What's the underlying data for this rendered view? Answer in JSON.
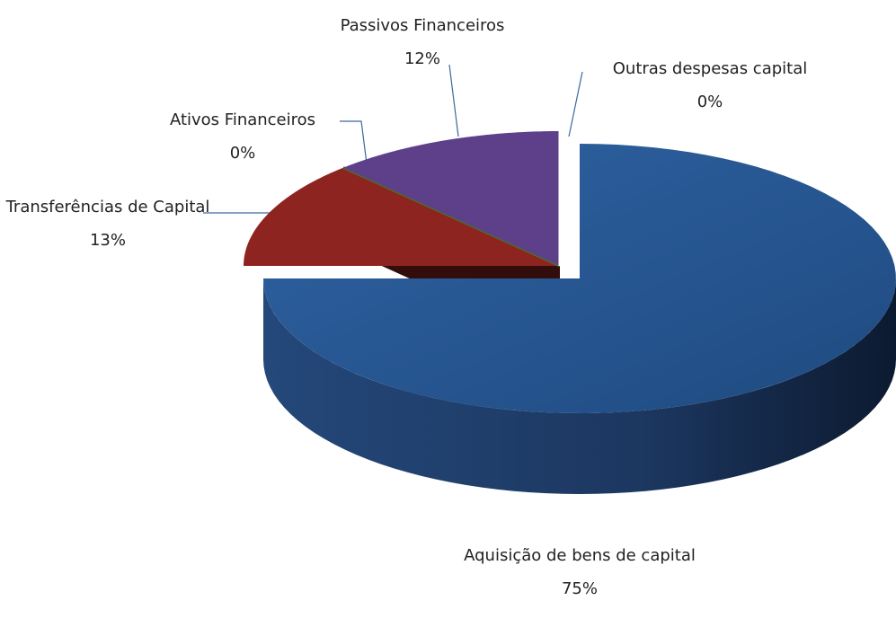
{
  "chart_data": {
    "type": "pie3d",
    "categories": [
      "Aquisição de bens de capital",
      "Transferências de Capital",
      "Ativos Financeiros",
      "Passivos Financeiros",
      "Outras despesas capital"
    ],
    "values": [
      75,
      13,
      0,
      12,
      0
    ],
    "value_labels": [
      "75%",
      "13%",
      "0%",
      "12%",
      "0%"
    ],
    "colors": [
      "#2b5c99",
      "#8e2420",
      "#4f6a2a",
      "#5d3f8a",
      "#ffffff"
    ]
  }
}
